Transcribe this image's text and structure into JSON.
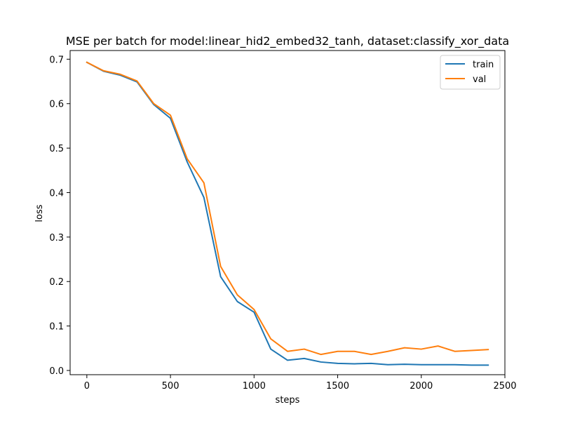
{
  "chart_data": {
    "type": "line",
    "title": "MSE per batch for model:linear_hid2_embed32_tanh, dataset:classify_xor_data",
    "xlabel": "steps",
    "ylabel": "loss",
    "xlim": [
      -100,
      2500
    ],
    "ylim": [
      -0.0095,
      0.7195
    ],
    "x_ticks": [
      0,
      500,
      1000,
      1500,
      2000,
      2500
    ],
    "y_ticks": [
      0.0,
      0.1,
      0.2,
      0.3,
      0.4,
      0.5,
      0.6,
      0.7
    ],
    "x_tick_labels": [
      "0",
      "500",
      "1000",
      "1500",
      "2000",
      "2500"
    ],
    "y_tick_labels": [
      "0.0",
      "0.1",
      "0.2",
      "0.3",
      "0.4",
      "0.5",
      "0.6",
      "0.7"
    ],
    "grid": false,
    "legend_position": "top-right",
    "x": [
      0,
      100,
      200,
      300,
      400,
      500,
      600,
      700,
      800,
      900,
      1000,
      1100,
      1200,
      1300,
      1400,
      1500,
      1600,
      1700,
      1800,
      1900,
      2000,
      2100,
      2200,
      2300,
      2400
    ],
    "series": [
      {
        "name": "train",
        "color": "#1f77b4",
        "values": [
          0.693,
          0.673,
          0.664,
          0.649,
          0.598,
          0.567,
          0.469,
          0.389,
          0.211,
          0.155,
          0.131,
          0.048,
          0.023,
          0.027,
          0.019,
          0.016,
          0.015,
          0.016,
          0.013,
          0.014,
          0.013,
          0.013,
          0.013,
          0.012,
          0.012
        ]
      },
      {
        "name": "val",
        "color": "#ff7f0e",
        "values": [
          0.693,
          0.674,
          0.666,
          0.651,
          0.6,
          0.574,
          0.476,
          0.422,
          0.234,
          0.17,
          0.137,
          0.071,
          0.043,
          0.048,
          0.036,
          0.043,
          0.043,
          0.036,
          0.043,
          0.051,
          0.048,
          0.055,
          0.043,
          0.045,
          0.047
        ]
      }
    ]
  }
}
